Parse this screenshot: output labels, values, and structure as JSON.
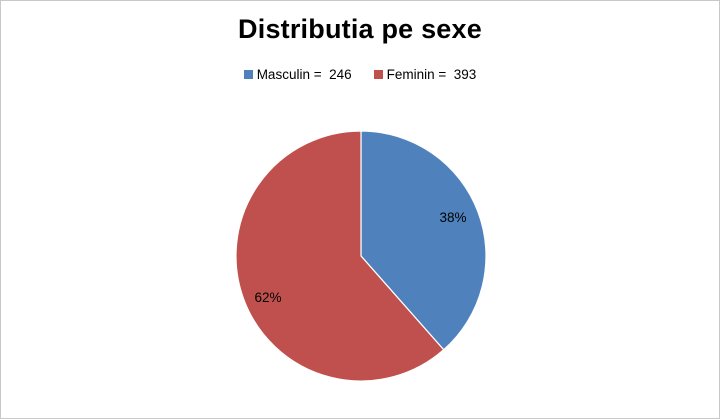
{
  "chart_data": {
    "type": "pie",
    "title": "Distributia pe sexe",
    "legend_position": "top",
    "slices": [
      {
        "label": "Masculin",
        "value": 246,
        "percent_label": "38%",
        "color": "#4f81bd",
        "legend_text": "Masculin =  246"
      },
      {
        "label": "Feminin",
        "value": 393,
        "percent_label": "62%",
        "color": "#c0504d",
        "legend_text": "Feminin =  393"
      }
    ]
  }
}
